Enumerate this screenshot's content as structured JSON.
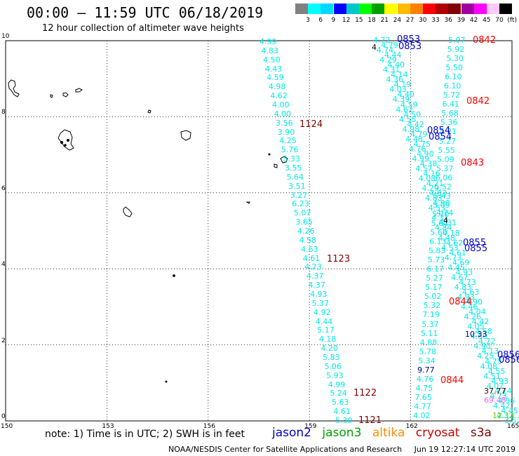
{
  "header": {
    "title": "00:00 – 11:59 UTC 06/18/2019",
    "subtitle": "12 hour collection of altimeter wave heights"
  },
  "colorbar": {
    "colors": [
      "#808080",
      "#00ffff",
      "#00d8ff",
      "#0000ff",
      "#00c8c8",
      "#00ff00",
      "#00a000",
      "#ffff00",
      "#ffbb00",
      "#ff8000",
      "#ff0000",
      "#b00000",
      "#800000",
      "#a000a0",
      "#ff00ff",
      "#ffc8ff",
      "#000000"
    ],
    "labels": [
      "3",
      "6",
      "9",
      "12",
      "15",
      "18",
      "21",
      "24",
      "27",
      "30",
      "33",
      "36",
      "39",
      "42",
      "45",
      "70",
      "(ft)"
    ]
  },
  "map": {
    "lon_ticks": [
      "150",
      "153",
      "156",
      "159",
      "162",
      "165"
    ],
    "lat_ticks": [
      "0",
      "2",
      "4",
      "6",
      "8",
      "10"
    ],
    "lon_range": [
      150,
      165
    ],
    "lat_range": [
      0,
      10
    ]
  },
  "tracks": {
    "track_a_color": "#00e8e8",
    "track_a_labels": [
      "4.99",
      "4.83",
      "4.50",
      "4.43",
      "4.59",
      "4.98",
      "4.62",
      "4.00",
      "4.00",
      "3.56",
      "3.90",
      "4.25",
      "5.76",
      "5.33",
      "3.55",
      "5.64",
      "3.51",
      "3.27",
      "6.23",
      "5.07",
      "3.65",
      "4.26",
      "4.58",
      "4.63",
      "4.61",
      "4.23",
      "4.37",
      "4.37",
      "4.93",
      "5.37",
      "4.92",
      "4.44",
      "5.17",
      "4.18",
      "4.20",
      "5.83",
      "5.06",
      "5.93",
      "4.99",
      "5.24",
      "5.63",
      "4.61",
      "5.30"
    ],
    "track_b_labels": [
      "5.07",
      "5.92",
      "5.30",
      "5.50",
      "6.10",
      "6.10",
      "5.72",
      "6.41",
      "5.68",
      "5.36",
      "5.21",
      "5.27",
      "5.55",
      "5.09",
      "5.37",
      "6.06",
      "5.52",
      "5.43",
      "5.09",
      "5.70",
      "5.64",
      "5.60",
      "6.13",
      "5.83",
      "5.73",
      "6.17",
      "5.27",
      "5.17",
      "5.02",
      "5.32",
      "7.19",
      "5.37",
      "5.11",
      "4.88",
      "5.78",
      "5.34",
      "9.77",
      "4.76",
      "4.75",
      "7.65",
      "4.77",
      "4.02"
    ],
    "track_c_labels": [
      "4.72",
      "4.79",
      "4.74",
      "4.44",
      "4.29",
      "4.40",
      "4.31",
      "4.14",
      "4.36",
      "4.19",
      "4.03",
      "4.40",
      "4.39",
      "4.59",
      "4.62",
      "4.50",
      "4.55",
      "4.42",
      "4.98",
      "4.79",
      "4.48",
      "4.75",
      "4.76",
      "4.90",
      "4.99",
      "4.38",
      "4.57",
      "4.16",
      "4.08",
      "4.21",
      "4.29",
      "4.83",
      "4.83",
      "4.90",
      "4.53",
      "4.74",
      "4.31",
      "4.31",
      "4.84",
      "4.18",
      "4.48",
      "4.62",
      "4.53",
      "4.61",
      "4.73",
      "4.69",
      "4.45",
      "4.93",
      "4.67",
      "4.73",
      "4.83",
      "4.63",
      "4.93",
      "4.90",
      "4.46",
      "4.04",
      "4.26",
      "4.42",
      "4.05",
      "4.58",
      "4.60",
      "4.72",
      "4.90",
      "4.13",
      "4.25",
      "4.75",
      "4.08",
      "4.55",
      "4.51",
      "4.93",
      "4.07",
      "4.74",
      "4.73",
      "4.96",
      "4.42",
      "4.45",
      "4.32",
      "3.52"
    ],
    "special_values": {
      "dark_1": "10.33",
      "dark_2": "37.77",
      "pink": "69.48",
      "green": "12.13",
      "black_near_top": "4",
      "black_mid": "4"
    }
  },
  "times": {
    "t1124": "1124",
    "t1123": "1123",
    "t1122": "1122",
    "t1121": "1121",
    "t0842a": "0842",
    "t0842b": "0842",
    "t0843": "0843",
    "t0844a": "0844",
    "t0844b": "0844",
    "t0853a": "0853",
    "t0853b": "0853",
    "t0854a": "0854",
    "t0854b": "0854",
    "t0855a": "0855",
    "t0855b": "0855",
    "t0856a": "0856",
    "t0856b": "0856"
  },
  "colors": {
    "jason2": "#0000cc",
    "jason3": "#00a000",
    "altika": "#ff8c00",
    "cryosat": "#cc0000",
    "s3a": "#800000",
    "time_red": "#ff0000",
    "time_darkred": "#800000",
    "time_blue": "#0000cc"
  },
  "footer": {
    "note": "note:  1) Time is in UTC;  2) SWH is in feet",
    "legend": [
      "jason2",
      "jason3",
      "altika",
      "cryosat",
      "s3a"
    ],
    "credit": "NOAA/NESDIS Center for Satellite Applications and Research     Jun 19 12:27:14 UTC 2019"
  }
}
